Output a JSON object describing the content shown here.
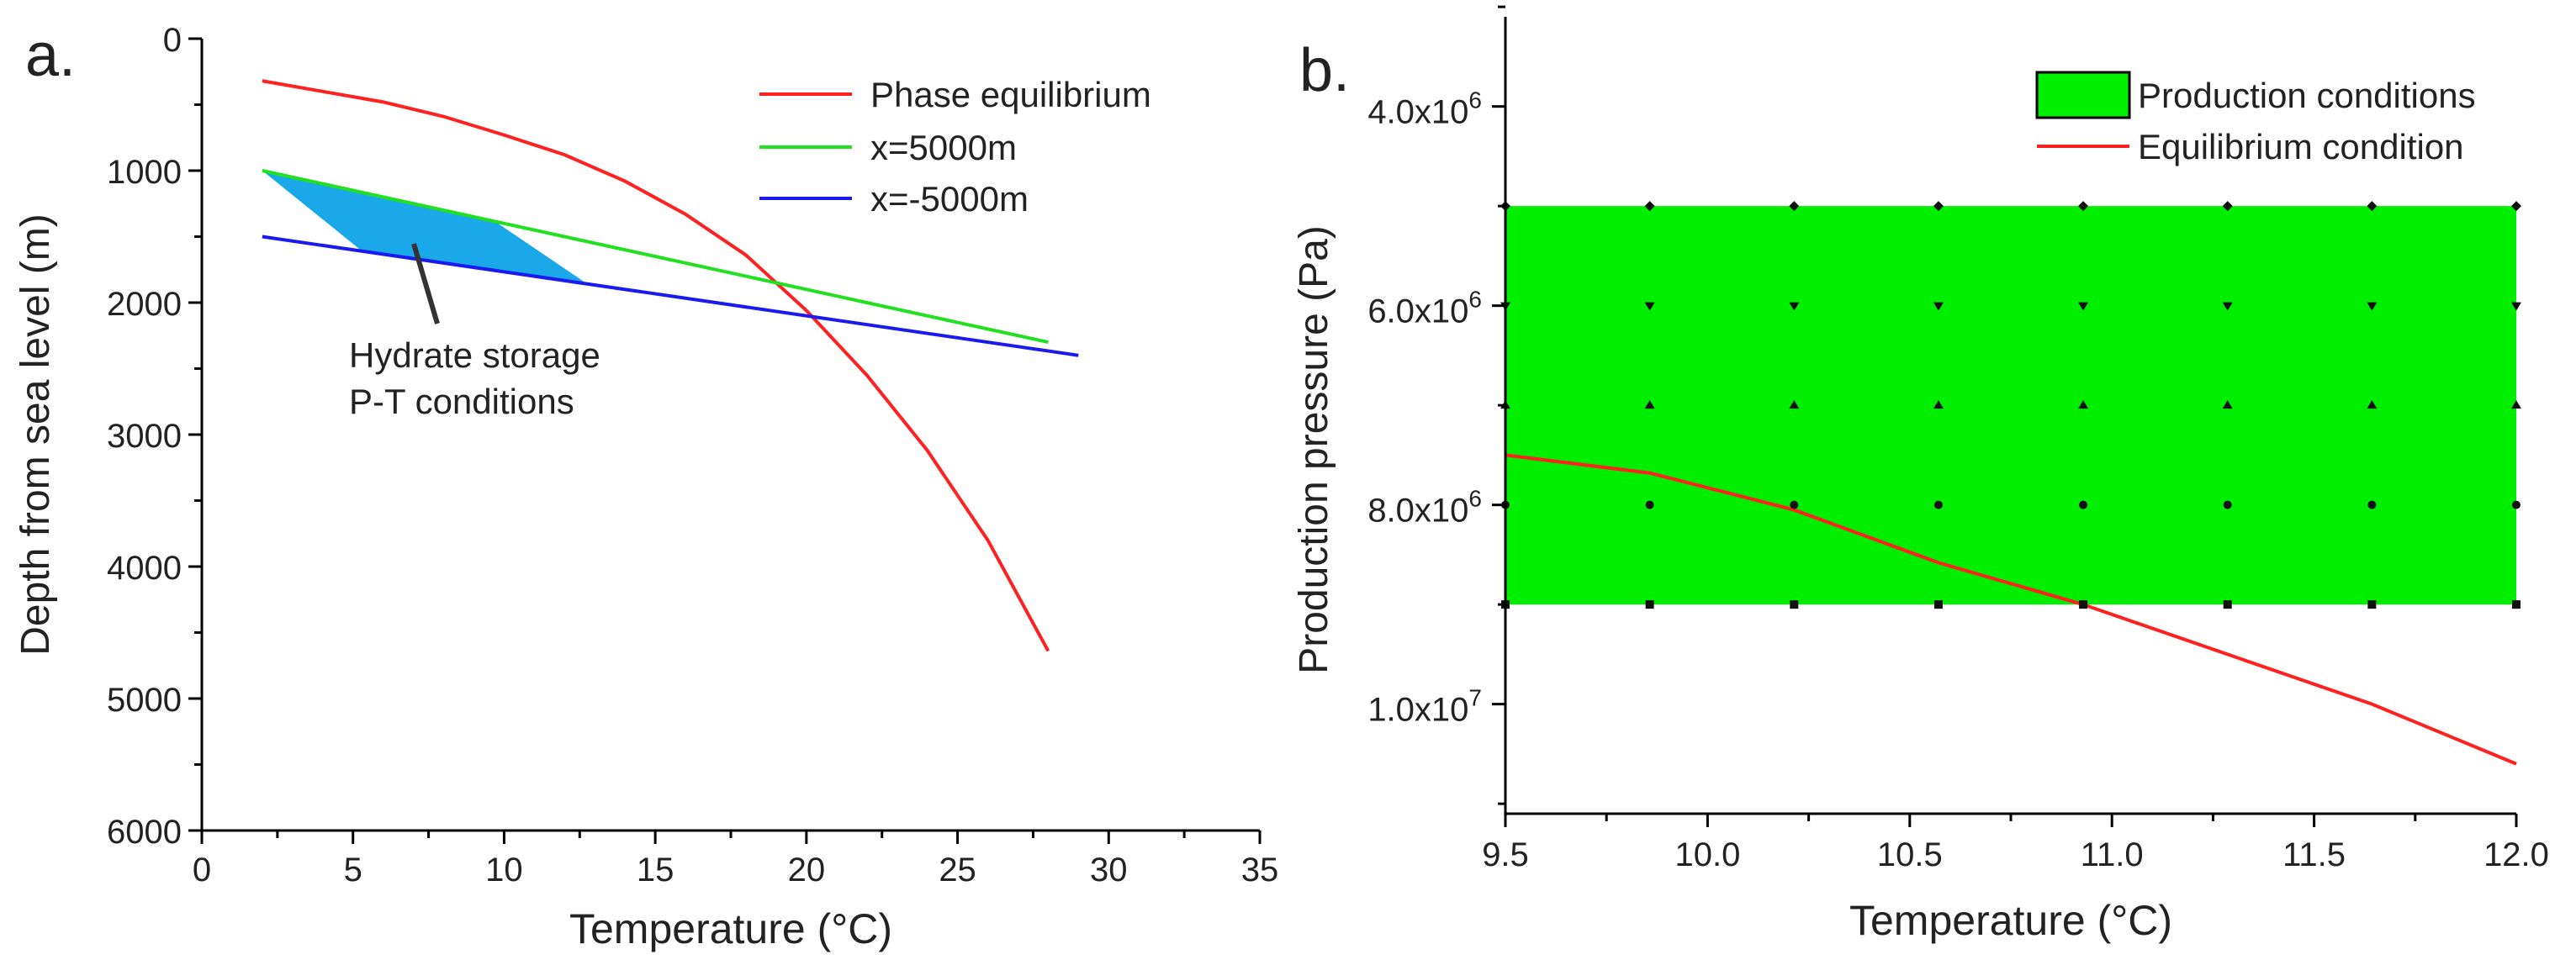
{
  "chart_data": [
    {
      "panel_label": "a.",
      "type": "line",
      "xlabel": "Temperature (°C)",
      "ylabel": "Depth from sea level (m)",
      "xlim": [
        0,
        35
      ],
      "ylim": [
        6000,
        0
      ],
      "x_ticks": [
        0,
        5,
        10,
        15,
        20,
        25,
        30,
        35
      ],
      "y_ticks": [
        0,
        1000,
        2000,
        3000,
        4000,
        5000,
        6000
      ],
      "x_tick_labels": [
        "0",
        "5",
        "10",
        "15",
        "20",
        "25",
        "30",
        "35"
      ],
      "y_tick_labels": [
        "0",
        "1000",
        "2000",
        "3000",
        "4000",
        "5000",
        "6000"
      ],
      "series": [
        {
          "name": "Phase equilibrium",
          "color": "#ff2020",
          "points": [
            [
              2,
              320
            ],
            [
              4,
              400
            ],
            [
              6,
              480
            ],
            [
              8,
              590
            ],
            [
              10,
              730
            ],
            [
              12,
              880
            ],
            [
              14,
              1080
            ],
            [
              16,
              1330
            ],
            [
              18,
              1640
            ],
            [
              20,
              2060
            ],
            [
              22,
              2550
            ],
            [
              24,
              3120
            ],
            [
              26,
              3800
            ],
            [
              28,
              4640
            ]
          ]
        },
        {
          "name": "x=5000m",
          "color": "#20e020",
          "points": [
            [
              2,
              1000
            ],
            [
              28,
              2300
            ]
          ]
        },
        {
          "name": "x=-5000m",
          "color": "#1a1aee",
          "points": [
            [
              2,
              1500
            ],
            [
              29,
              2400
            ]
          ]
        }
      ],
      "regions": [
        {
          "name": "Hydrate storage region",
          "color": "#1aa8e8",
          "points": [
            [
              2,
              1000
            ],
            [
              9.6,
              1370
            ],
            [
              12.7,
              1850
            ],
            [
              5.3,
              1610
            ]
          ]
        }
      ],
      "annotations": [
        {
          "lines": [
            "Hydrate storage",
            "P-T conditions"
          ],
          "arrow_to": [
            7.2,
            1470
          ]
        }
      ],
      "legend_position": "top-right"
    },
    {
      "panel_label": "b.",
      "type": "area",
      "xlabel": "Temperature (°C)",
      "ylabel": "Production pressure (Pa)",
      "xlim": [
        9.5,
        12.0
      ],
      "ylim": [
        11100000,
        3100000
      ],
      "x_ticks": [
        9.5,
        10.0,
        10.5,
        11.0,
        11.5,
        12.0
      ],
      "x_tick_labels": [
        "9.5",
        "10.0",
        "10.5",
        "11.0",
        "11.5",
        "12.0"
      ],
      "y_ticks": [
        4000000,
        6000000,
        8000000,
        10000000
      ],
      "y_tick_labels": [
        {
          "mantissa": "4.0x10",
          "exp": "6"
        },
        {
          "mantissa": "6.0x10",
          "exp": "6"
        },
        {
          "mantissa": "8.0x10",
          "exp": "6"
        },
        {
          "mantissa": "1.0x10",
          "exp": "7"
        }
      ],
      "production_region": {
        "name": "Production conditions",
        "color": "#00ee00",
        "x_range": [
          9.5,
          12.0
        ],
        "y_range": [
          5000000,
          9000000
        ]
      },
      "grid_markers": {
        "x": [
          9.5,
          9.857,
          10.214,
          10.571,
          10.929,
          11.286,
          11.643,
          12.0
        ],
        "rows": [
          {
            "y": 5000000,
            "marker": "diamond"
          },
          {
            "y": 6000000,
            "marker": "triangle-down"
          },
          {
            "y": 7000000,
            "marker": "triangle-up"
          },
          {
            "y": 8000000,
            "marker": "circle"
          },
          {
            "y": 9000000,
            "marker": "square"
          }
        ]
      },
      "series": [
        {
          "name": "Equilibrium condition",
          "color": "#ff2020",
          "points": [
            [
              9.5,
              7500000
            ],
            [
              9.857,
              7680000
            ],
            [
              10.214,
              8050000
            ],
            [
              10.571,
              8580000
            ],
            [
              10.929,
              9000000
            ],
            [
              11.286,
              9500000
            ],
            [
              11.643,
              10000000
            ],
            [
              12.0,
              10600000
            ]
          ]
        }
      ],
      "legend_position": "top-right"
    }
  ]
}
